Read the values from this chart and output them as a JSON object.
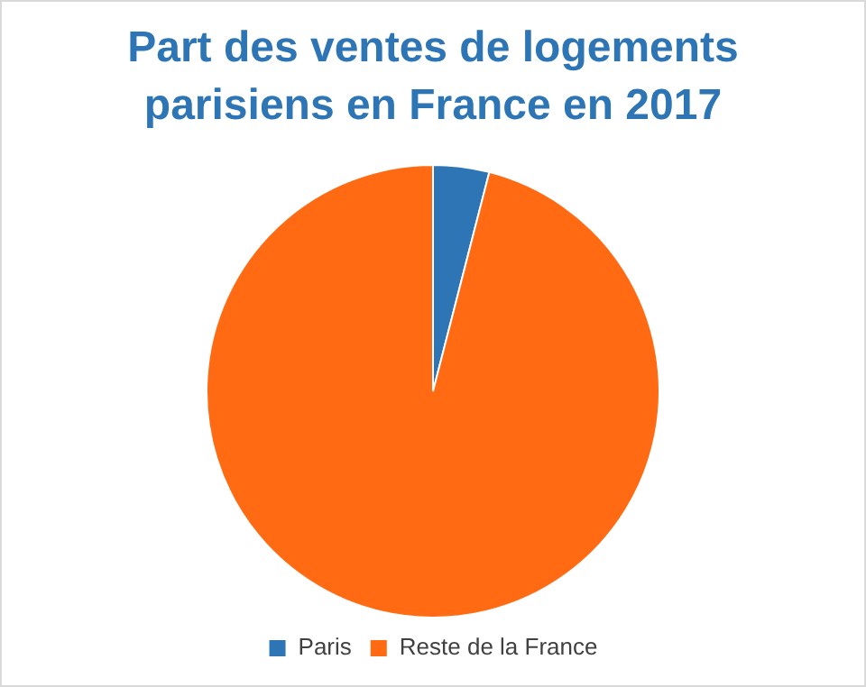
{
  "chart_data": {
    "type": "pie",
    "title": "Part des ventes de logements parisiens en France en 2017",
    "categories": [
      "Paris",
      "Reste de la France"
    ],
    "values": [
      4,
      96
    ],
    "colors": [
      "#2e75b6",
      "#ff6a13"
    ],
    "legend": "bottom"
  }
}
